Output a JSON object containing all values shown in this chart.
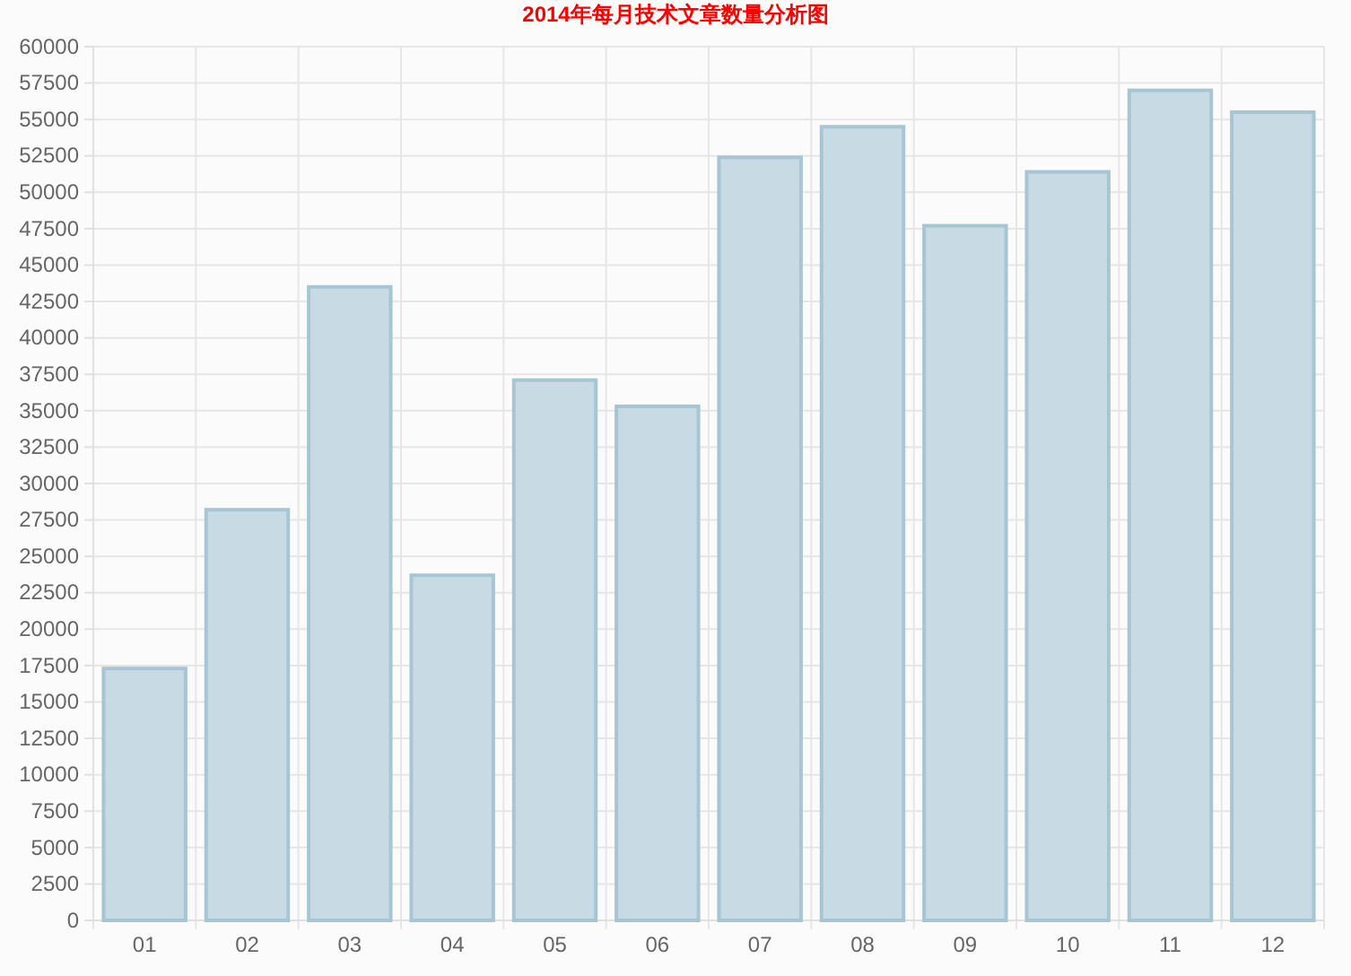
{
  "chart_data": {
    "type": "bar",
    "title": "2014年每月技术文章数量分析图",
    "categories": [
      "01",
      "02",
      "03",
      "04",
      "05",
      "06",
      "07",
      "08",
      "09",
      "10",
      "11",
      "12"
    ],
    "values": [
      17300,
      28200,
      43500,
      23700,
      37100,
      35300,
      52400,
      54500,
      47700,
      51400,
      57000,
      55500
    ],
    "color": "#c8dbe4",
    "ylim": [
      0,
      60000
    ],
    "yticks": [
      0,
      2500,
      5000,
      7500,
      10000,
      12500,
      15000,
      17500,
      20000,
      22500,
      25000,
      27500,
      30000,
      32500,
      35000,
      37500,
      40000,
      42500,
      45000,
      47500,
      50000,
      52500,
      55000,
      57500,
      60000
    ],
    "grid": true
  }
}
